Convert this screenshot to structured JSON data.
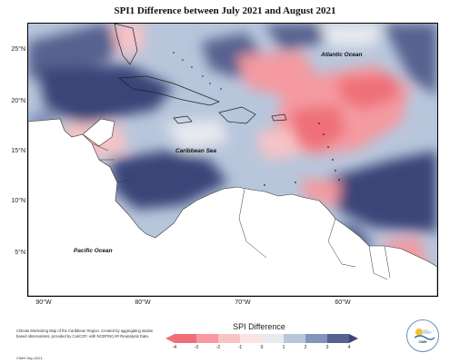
{
  "title": "SPI1 Difference between July 2021 and August 2021",
  "map": {
    "lat_labels": [
      "25°N",
      "20°N",
      "15°N",
      "10°N",
      "5°N"
    ],
    "lon_labels": [
      "90°W",
      "80°W",
      "70°W",
      "60°W"
    ],
    "region_labels": {
      "atlantic": "Atlantic Ocean",
      "caribbean": "Caribbean Sea",
      "pacific": "Pacific Ocean"
    }
  },
  "legend": {
    "title": "SPI Difference",
    "ticks": [
      "-4",
      "-3",
      "-2",
      "-1",
      "0",
      "1",
      "2",
      "3",
      "4"
    ],
    "colors": [
      "#ef6f78",
      "#f49aa0",
      "#f7c3c6",
      "#fbe3e4",
      "#e7eaee",
      "#b8c6dc",
      "#8393b9",
      "#56628f",
      "#3b4478"
    ]
  },
  "credits": {
    "text": "Climate Monitoring Map of the Caribbean Region. Created by aggregating station based observations, provided by CariCOF, with NCEP/NCAR Reanalysis Data.",
    "tag": "CIMH Sep-2021"
  },
  "logo": {
    "text": "CIMH"
  }
}
